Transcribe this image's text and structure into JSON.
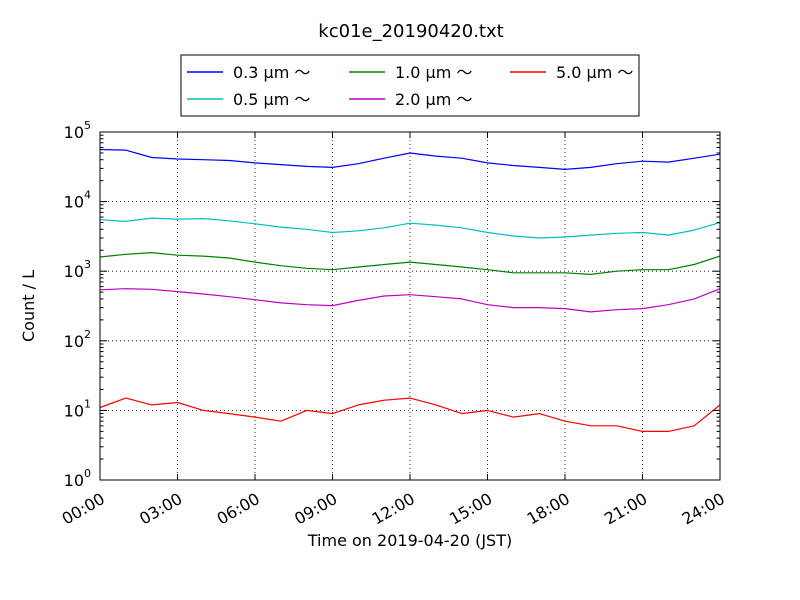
{
  "chart_data": {
    "type": "line",
    "title": "kc01e_20190420.txt",
    "xlabel": "Time on 2019-04-20 (JST)",
    "ylabel": "Count / L",
    "yscale": "log",
    "ylim_exponents": [
      0,
      5
    ],
    "y_tick_base": "10",
    "y_tick_exponents": [
      "0",
      "1",
      "2",
      "3",
      "4",
      "5"
    ],
    "xlim_hours": [
      0,
      24
    ],
    "x_tick_hours": [
      0,
      3,
      6,
      9,
      12,
      15,
      18,
      21,
      24
    ],
    "x_tick_labels": [
      "00:00",
      "03:00",
      "06:00",
      "09:00",
      "12:00",
      "15:00",
      "18:00",
      "21:00",
      "24:00"
    ],
    "grid": "dotted",
    "legend_position": "top, above plot",
    "x_hours": [
      0,
      1,
      2,
      3,
      4,
      5,
      6,
      7,
      8,
      9,
      10,
      11,
      12,
      13,
      14,
      15,
      16,
      17,
      18,
      19,
      20,
      21,
      22,
      23,
      24
    ],
    "series": [
      {
        "name": "0.3 μm ～",
        "color": "#0000ff",
        "values": [
          56000,
          55000,
          43000,
          41000,
          40000,
          39000,
          36000,
          34000,
          32000,
          31000,
          35000,
          42000,
          50000,
          45000,
          42000,
          36000,
          33000,
          31000,
          29000,
          31000,
          35000,
          38000,
          37000,
          42000,
          48000
        ]
      },
      {
        "name": "0.5 μm ～",
        "color": "#00bfbf",
        "values": [
          5500,
          5200,
          5800,
          5600,
          5700,
          5300,
          4800,
          4300,
          4000,
          3600,
          3800,
          4200,
          4900,
          4600,
          4200,
          3600,
          3200,
          3000,
          3100,
          3300,
          3500,
          3600,
          3300,
          3900,
          5000
        ]
      },
      {
        "name": "1.0 μm ～",
        "color": "#008000",
        "values": [
          1600,
          1750,
          1850,
          1700,
          1650,
          1550,
          1350,
          1200,
          1100,
          1050,
          1150,
          1250,
          1350,
          1250,
          1150,
          1050,
          950,
          950,
          950,
          900,
          1000,
          1050,
          1050,
          1250,
          1650
        ]
      },
      {
        "name": "2.0 μm ～",
        "color": "#bf00bf",
        "values": [
          540,
          560,
          550,
          510,
          470,
          430,
          390,
          350,
          330,
          320,
          380,
          440,
          460,
          430,
          400,
          330,
          300,
          300,
          290,
          260,
          280,
          290,
          330,
          400,
          560
        ]
      },
      {
        "name": "5.0 μm ～",
        "color": "#ff0000",
        "values": [
          11,
          15,
          12,
          13,
          10,
          9,
          8,
          7,
          10,
          9,
          12,
          14,
          15,
          12,
          9,
          10,
          8,
          9,
          7,
          6,
          6,
          5,
          5,
          6,
          12
        ]
      }
    ]
  }
}
